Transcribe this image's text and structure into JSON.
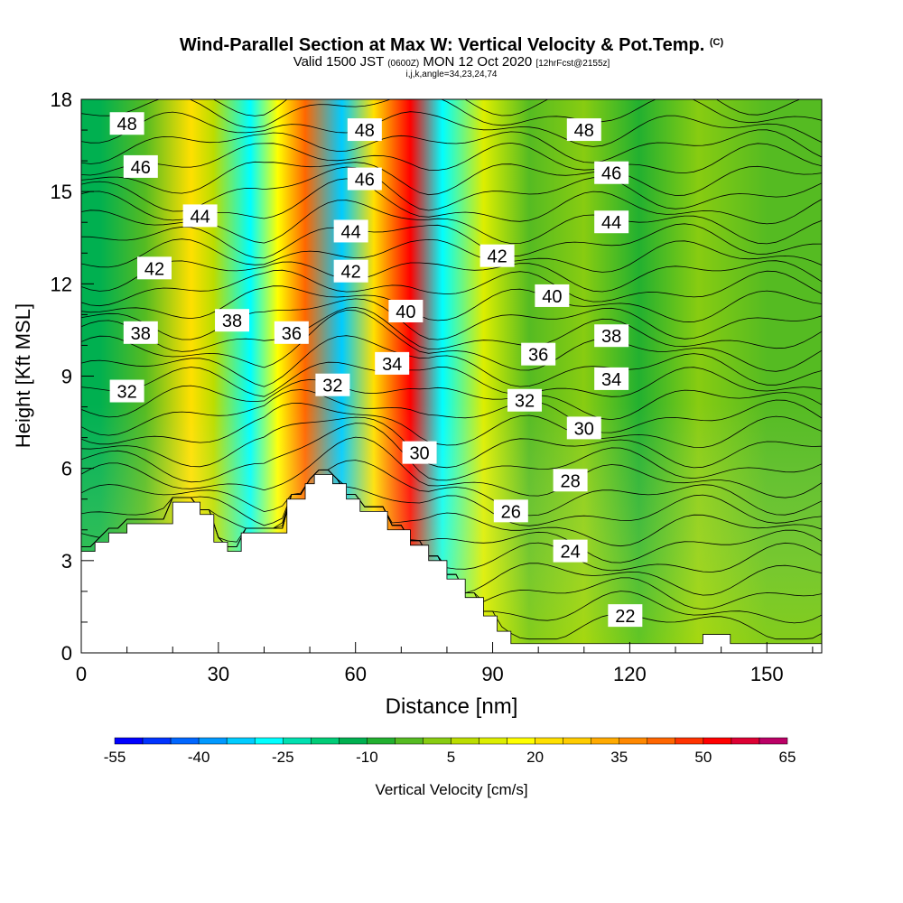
{
  "title": "Wind-Parallel Section at Max W: Vertical Velocity & Pot.Temp.",
  "title_mark": "(C)",
  "subtitle": {
    "prefix": "Valid 1500 JST",
    "utc": "(0600Z)",
    "date": "MON 12 Oct 2020",
    "fcst": "[12hrFcst@2155z]"
  },
  "subtitle2": "i,j,k,angle=34,23,24,74",
  "chart_data": {
    "type": "heatmap",
    "xlabel": "Distance [nm]",
    "ylabel": "Height [Kft MSL]",
    "xlim": [
      0,
      162
    ],
    "ylim": [
      0,
      18
    ],
    "xticks": [
      "0",
      "30",
      "60",
      "90",
      "120",
      "150"
    ],
    "yticks": [
      "0",
      "3",
      "6",
      "9",
      "12",
      "15",
      "18"
    ],
    "colorbar": {
      "label": "Vertical Velocity [cm/s]",
      "tick_labels": [
        "-55",
        "-40",
        "-25",
        "-10",
        "5",
        "20",
        "35",
        "50",
        "65"
      ],
      "min": -55,
      "max": 65,
      "step": 5,
      "colors": [
        "#0000ff",
        "#0033ff",
        "#0066ff",
        "#0099ff",
        "#00ccff",
        "#00ffff",
        "#00e0b0",
        "#00cc77",
        "#00b050",
        "#22b030",
        "#55bb22",
        "#88cc11",
        "#bbdd00",
        "#ddee00",
        "#ffff00",
        "#ffe000",
        "#ffcc00",
        "#ffaa00",
        "#ff8800",
        "#ff6600",
        "#ff3300",
        "#ff0000",
        "#dd0033",
        "#bb0066",
        "#880088"
      ]
    },
    "w_columns": [
      {
        "x": 4,
        "w": -12
      },
      {
        "x": 14,
        "w": -3
      },
      {
        "x": 24,
        "w": 20
      },
      {
        "x": 29,
        "w": 5
      },
      {
        "x": 37,
        "w": -27
      },
      {
        "x": 43,
        "w": 18
      },
      {
        "x": 49,
        "w": 42
      },
      {
        "x": 57,
        "w": -32
      },
      {
        "x": 64,
        "w": 24
      },
      {
        "x": 72,
        "w": 52
      },
      {
        "x": 79,
        "w": -27
      },
      {
        "x": 88,
        "w": 10
      },
      {
        "x": 98,
        "w": -5
      },
      {
        "x": 110,
        "w": 3
      },
      {
        "x": 122,
        "w": -6
      },
      {
        "x": 135,
        "w": 2
      },
      {
        "x": 150,
        "w": -4
      }
    ],
    "terrain": [
      {
        "x": 0,
        "h": 3.3
      },
      {
        "x": 3,
        "h": 3.6
      },
      {
        "x": 6,
        "h": 3.9
      },
      {
        "x": 10,
        "h": 4.2
      },
      {
        "x": 20,
        "h": 4.9
      },
      {
        "x": 26,
        "h": 4.5
      },
      {
        "x": 29,
        "h": 3.6
      },
      {
        "x": 32,
        "h": 3.3
      },
      {
        "x": 35,
        "h": 3.9
      },
      {
        "x": 45,
        "h": 5.0
      },
      {
        "x": 49,
        "h": 5.5
      },
      {
        "x": 51,
        "h": 5.8
      },
      {
        "x": 55,
        "h": 5.5
      },
      {
        "x": 58,
        "h": 5.0
      },
      {
        "x": 61,
        "h": 4.6
      },
      {
        "x": 67,
        "h": 4.0
      },
      {
        "x": 72,
        "h": 3.5
      },
      {
        "x": 76,
        "h": 3.0
      },
      {
        "x": 80,
        "h": 2.4
      },
      {
        "x": 84,
        "h": 1.8
      },
      {
        "x": 88,
        "h": 1.2
      },
      {
        "x": 91,
        "h": 0.7
      },
      {
        "x": 94,
        "h": 0.3
      },
      {
        "x": 134,
        "h": 0.3
      },
      {
        "x": 136,
        "h": 0.6
      },
      {
        "x": 142,
        "h": 0.3
      },
      {
        "x": 162,
        "h": 0.3
      }
    ],
    "theta_labels": [
      {
        "text": "48",
        "x": 10,
        "y": 17.2
      },
      {
        "text": "46",
        "x": 13,
        "y": 15.8
      },
      {
        "text": "44",
        "x": 26,
        "y": 14.2
      },
      {
        "text": "42",
        "x": 16,
        "y": 12.5
      },
      {
        "text": "38",
        "x": 13,
        "y": 10.4
      },
      {
        "text": "38",
        "x": 33,
        "y": 10.8
      },
      {
        "text": "36",
        "x": 46,
        "y": 10.4
      },
      {
        "text": "32",
        "x": 10,
        "y": 8.5
      },
      {
        "text": "48",
        "x": 62,
        "y": 17.0
      },
      {
        "text": "46",
        "x": 62,
        "y": 15.4
      },
      {
        "text": "44",
        "x": 59,
        "y": 13.7
      },
      {
        "text": "42",
        "x": 59,
        "y": 12.4
      },
      {
        "text": "40",
        "x": 71,
        "y": 11.1
      },
      {
        "text": "34",
        "x": 68,
        "y": 9.4
      },
      {
        "text": "32",
        "x": 55,
        "y": 8.7
      },
      {
        "text": "30",
        "x": 74,
        "y": 6.5
      },
      {
        "text": "42",
        "x": 91,
        "y": 12.9
      },
      {
        "text": "48",
        "x": 110,
        "y": 17.0
      },
      {
        "text": "46",
        "x": 116,
        "y": 15.6
      },
      {
        "text": "44",
        "x": 116,
        "y": 14.0
      },
      {
        "text": "40",
        "x": 103,
        "y": 11.6
      },
      {
        "text": "38",
        "x": 116,
        "y": 10.3
      },
      {
        "text": "36",
        "x": 100,
        "y": 9.7
      },
      {
        "text": "34",
        "x": 116,
        "y": 8.9
      },
      {
        "text": "32",
        "x": 97,
        "y": 8.2
      },
      {
        "text": "30",
        "x": 110,
        "y": 7.3
      },
      {
        "text": "28",
        "x": 107,
        "y": 5.6
      },
      {
        "text": "26",
        "x": 94,
        "y": 4.6
      },
      {
        "text": "24",
        "x": 107,
        "y": 3.3
      },
      {
        "text": "22",
        "x": 119,
        "y": 1.2
      }
    ]
  }
}
